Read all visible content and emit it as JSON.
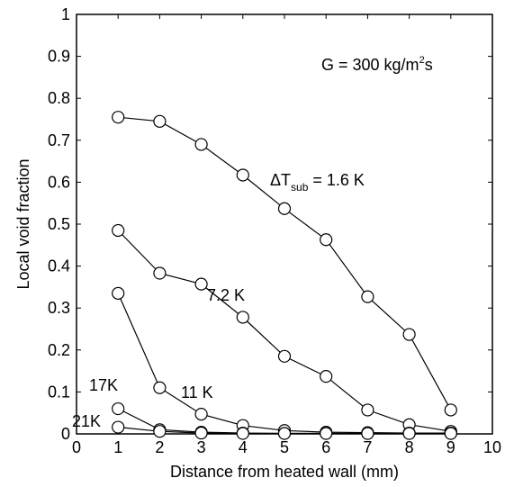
{
  "chart_data": {
    "type": "line",
    "xlabel": "Distance from heated wall (mm)",
    "ylabel": "Local void fraction",
    "xlim": [
      0,
      10
    ],
    "ylim": [
      0,
      1
    ],
    "x_ticks": [
      "0",
      "1",
      "2",
      "3",
      "4",
      "5",
      "6",
      "7",
      "8",
      "9",
      "10"
    ],
    "y_ticks": [
      "0",
      "0.1",
      "0.2",
      "0.3",
      "0.4",
      "0.5",
      "0.6",
      "0.7",
      "0.8",
      "0.9",
      "1"
    ],
    "grid": false,
    "marker": "open-circle",
    "line_color": "#000000",
    "series": [
      {
        "label": "ΔTsub = 1.6 K",
        "x": [
          1,
          2,
          3,
          4,
          5,
          6,
          7,
          8,
          9
        ],
        "y": [
          0.755,
          0.745,
          0.69,
          0.617,
          0.537,
          0.463,
          0.327,
          0.237,
          0.057
        ]
      },
      {
        "label": "7.2 K",
        "x": [
          1,
          2,
          3,
          4,
          5,
          6,
          7,
          8,
          9
        ],
        "y": [
          0.485,
          0.383,
          0.357,
          0.278,
          0.185,
          0.137,
          0.057,
          0.022,
          0.006
        ]
      },
      {
        "label": "11 K",
        "x": [
          1,
          2,
          3,
          4,
          5,
          6,
          7,
          8,
          9
        ],
        "y": [
          0.335,
          0.11,
          0.047,
          0.02,
          0.008,
          0.004,
          0.003,
          0.002,
          0.002
        ]
      },
      {
        "label": "17K",
        "x": [
          1,
          2,
          3,
          4,
          5,
          6,
          7,
          8,
          9
        ],
        "y": [
          0.06,
          0.01,
          0.004,
          0.002,
          0.001,
          0.001,
          0.001,
          0.001,
          0.001
        ]
      },
      {
        "label": "21K",
        "x": [
          1,
          2,
          3,
          4,
          5,
          6,
          7,
          8,
          9
        ],
        "y": [
          0.016,
          0.006,
          0.002,
          0.001,
          0.001,
          0.001,
          0.001,
          0.001,
          0.001
        ]
      }
    ],
    "annotations": {
      "condition_main": "G = 300 kg/m",
      "condition_sup": "2",
      "condition_tail": "s",
      "dt_prefix": "ΔT",
      "dt_sub": "sub",
      "dt_tail": " = 1.6 K",
      "label_7_2": "7.2 K",
      "label_11": "11 K",
      "label_17": "17K",
      "label_21": "21K"
    }
  }
}
